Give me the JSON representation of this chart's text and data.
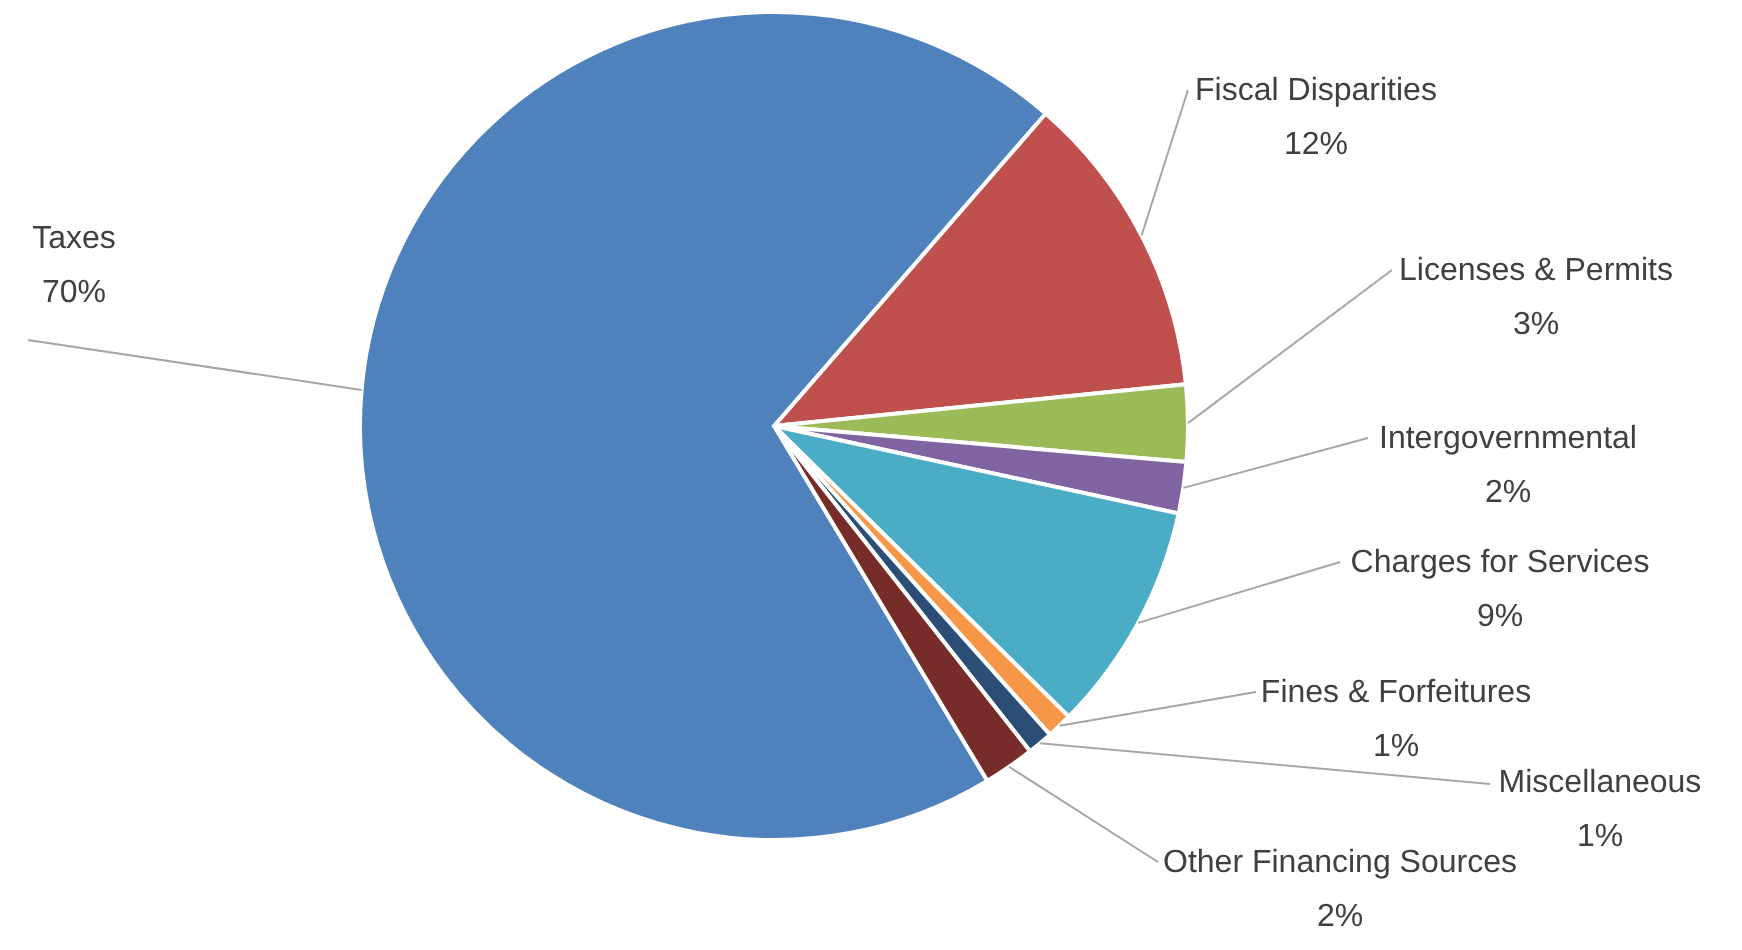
{
  "chart_data": {
    "type": "pie",
    "categories": [
      "Fiscal Disparities",
      "Licenses & Permits",
      "Intergovernmental",
      "Charges for Services",
      "Fines & Forfeitures",
      "Miscellaneous",
      "Other Financing Sources",
      "Taxes"
    ],
    "values": [
      12,
      3,
      2,
      9,
      1,
      1,
      2,
      70
    ],
    "colors": [
      "#c0504d",
      "#9bbb59",
      "#8064a2",
      "#4bacc6",
      "#f79646",
      "#2c4d75",
      "#772c2a",
      "#4f81bd"
    ],
    "value_labels": [
      "12%",
      "3%",
      "2%",
      "9%",
      "1%",
      "1%",
      "2%",
      "70%"
    ]
  }
}
